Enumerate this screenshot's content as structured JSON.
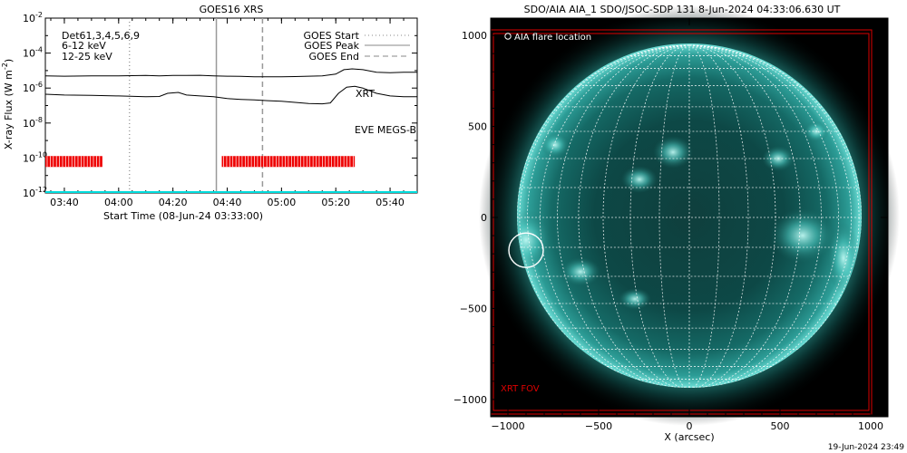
{
  "footer_timestamp": "19-Jun-2024 23:49",
  "chart_data": [
    {
      "type": "line",
      "title": "GOES16 XRS",
      "xlabel": "Start Time (08-Jun-24 03:33:00)",
      "ylabel": "X-ray Flux (W m",
      "ylabel_sup": "-2",
      "ylabel_close": ")",
      "x_ticks": [
        "03:40",
        "04:00",
        "04:20",
        "04:40",
        "05:00",
        "05:20",
        "05:40"
      ],
      "x_tick_minutes": [
        220,
        240,
        260,
        280,
        300,
        320,
        340
      ],
      "xlim_minutes": [
        213,
        350
      ],
      "y_ticks": [
        {
          "exp": -12,
          "label": "10",
          "sup": "-12"
        },
        {
          "exp": -10,
          "label": "10",
          "sup": "-10"
        },
        {
          "exp": -8,
          "label": "10",
          "sup": "-8"
        },
        {
          "exp": -6,
          "label": "10",
          "sup": "-6"
        },
        {
          "exp": -4,
          "label": "10",
          "sup": "-4"
        },
        {
          "exp": -2,
          "label": "10",
          "sup": "-2"
        }
      ],
      "ylim_log10": [
        -12,
        -2
      ],
      "channels_label": "Det61,3,4,5,6,9",
      "band_labels": [
        {
          "text": "6-12 keV",
          "color": "#cc00cc"
        },
        {
          "text": "12-25 keV",
          "color": "#00cc00"
        }
      ],
      "legend": [
        {
          "label": "GOES Start",
          "style": "dotted"
        },
        {
          "label": "GOES Peak",
          "style": "solid"
        },
        {
          "label": "GOES End",
          "style": "dashed"
        }
      ],
      "annotations": [
        {
          "text": "XRT",
          "color": "#dd0000"
        },
        {
          "text": "EVE MEGS-B",
          "color": "#00dddd"
        }
      ],
      "goes_start_minute": 244,
      "goes_peak_minute": 276,
      "goes_end_minute": 293,
      "series": [
        {
          "color": "#000000",
          "x": [
            213,
            220,
            230,
            240,
            250,
            255,
            260,
            265,
            270,
            275,
            280,
            285,
            290,
            295,
            300,
            305,
            310,
            315,
            320,
            323,
            326,
            330,
            335,
            340,
            345,
            350
          ],
          "log10_y": [
            -5.3,
            -5.32,
            -5.3,
            -5.3,
            -5.28,
            -5.3,
            -5.28,
            -5.28,
            -5.27,
            -5.3,
            -5.32,
            -5.33,
            -5.35,
            -5.36,
            -5.36,
            -5.34,
            -5.32,
            -5.3,
            -5.2,
            -4.95,
            -4.9,
            -4.95,
            -5.1,
            -5.12,
            -5.1,
            -5.1
          ]
        },
        {
          "color": "#000000",
          "x": [
            213,
            220,
            230,
            240,
            250,
            255,
            258,
            262,
            265,
            270,
            275,
            280,
            285,
            290,
            295,
            300,
            305,
            310,
            315,
            318,
            321,
            324,
            327,
            330,
            335,
            340,
            345,
            350
          ],
          "log10_y": [
            -6.35,
            -6.4,
            -6.42,
            -6.45,
            -6.5,
            -6.48,
            -6.3,
            -6.25,
            -6.4,
            -6.45,
            -6.5,
            -6.6,
            -6.65,
            -6.68,
            -6.72,
            -6.75,
            -6.82,
            -6.88,
            -6.9,
            -6.85,
            -6.3,
            -5.95,
            -5.9,
            -6.0,
            -6.3,
            -6.45,
            -6.5,
            -6.5
          ]
        }
      ],
      "xrt_coverage_minutes": [
        [
          213,
          234
        ],
        [
          278,
          327
        ]
      ],
      "xrt_coverage_log10": -10.2,
      "eve_log10": -12
    },
    {
      "type": "scatter",
      "title": "SDO/AIA AIA_1 SDO/JSOC-SDP 131  8-Jun-2024 04:33:06.630 UT",
      "xlabel": "X (arcsec)",
      "ylabel": "",
      "x_ticks": [
        -1000,
        -500,
        0,
        500,
        1000
      ],
      "y_ticks": [
        -1000,
        -500,
        0,
        500,
        1000
      ],
      "xlim": [
        -1095,
        1095
      ],
      "ylim": [
        -1095,
        1095
      ],
      "legend_label": "AIA flare location",
      "xrt_fov_label": "XRT FOV",
      "solar_radius_arcsec": 950,
      "flare_location": {
        "x": -900,
        "y": -180
      }
    }
  ]
}
